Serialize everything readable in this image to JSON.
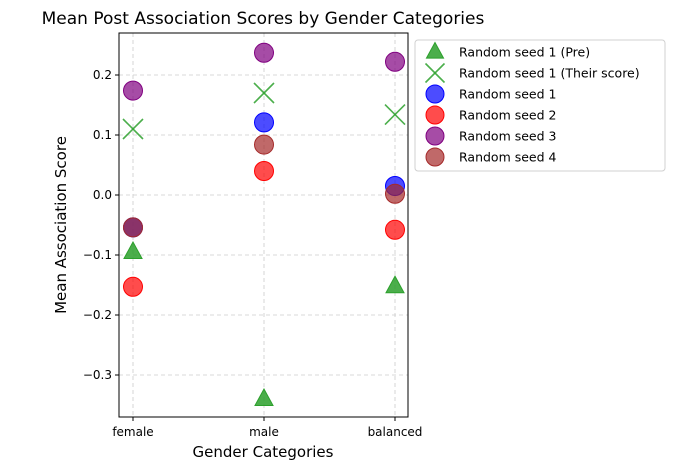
{
  "chart_data": {
    "type": "scatter",
    "title": "Mean Post Association Scores by Gender Categories",
    "xlabel": "Gender Categories",
    "ylabel": "Mean Association Score",
    "categories": [
      "female",
      "male",
      "balanced"
    ],
    "ylim": [
      -0.37,
      0.27
    ],
    "yticks": [
      -0.3,
      -0.2,
      -0.1,
      0.0,
      0.1,
      0.2
    ],
    "ytick_labels": [
      "−0.3",
      "−0.2",
      "−0.1",
      "0.0",
      "0.1",
      "0.2"
    ],
    "grid": true,
    "legend_position": "outside-right-top",
    "series": [
      {
        "name": "Random seed 1 (Pre)",
        "marker": "triangle",
        "color": "#2ca02c",
        "values": [
          -0.095,
          -0.34,
          -0.152
        ]
      },
      {
        "name": "Random seed 1 (Their score)",
        "marker": "x",
        "color": "#2ca02c",
        "values": [
          0.11,
          0.17,
          0.134
        ]
      },
      {
        "name": "Random seed 1",
        "marker": "circle",
        "color": "#0000ff",
        "values": [
          -0.054,
          0.121,
          0.015
        ]
      },
      {
        "name": "Random seed 2",
        "marker": "circle",
        "color": "#ff0000",
        "values": [
          -0.153,
          0.04,
          -0.058
        ]
      },
      {
        "name": "Random seed 3",
        "marker": "circle",
        "color": "#800080",
        "values": [
          0.174,
          0.237,
          0.222
        ]
      },
      {
        "name": "Random seed 4",
        "marker": "circle",
        "color": "#a52a2a",
        "values": [
          -0.054,
          0.084,
          0.002
        ]
      }
    ]
  }
}
